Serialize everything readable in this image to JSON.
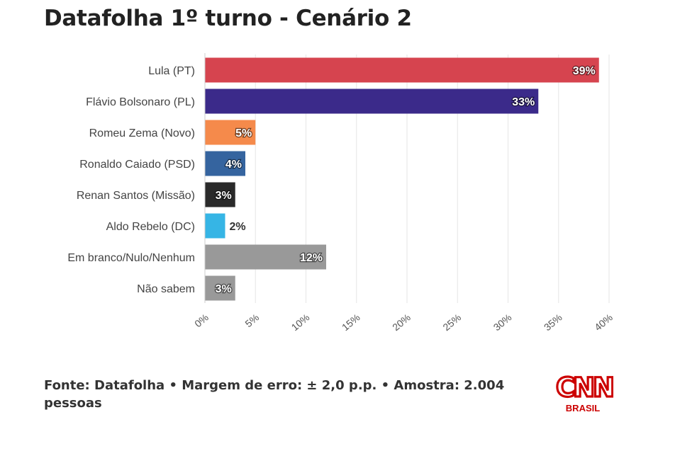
{
  "title": "Datafolha 1º turno - Cenário 2",
  "chart_data": {
    "type": "bar",
    "orientation": "horizontal",
    "title": "Datafolha 1º turno - Cenário 2",
    "categories": [
      "Lula (PT)",
      "Flávio Bolsonaro (PL)",
      "Romeu Zema (Novo)",
      "Ronaldo Caiado (PSD)",
      "Renan Santos (Missão)",
      "Aldo Rebelo (DC)",
      "Em branco/Nulo/Nenhum",
      "Não sabem"
    ],
    "values": [
      39,
      33,
      5,
      4,
      3,
      2,
      12,
      3
    ],
    "value_labels": [
      "39%",
      "33%",
      "5%",
      "4%",
      "3%",
      "2%",
      "12%",
      "3%"
    ],
    "colors": [
      "#d6444f",
      "#3b2a8a",
      "#f58a4b",
      "#35649f",
      "#2a2a2a",
      "#36b5e5",
      "#999999",
      "#999999"
    ],
    "xlim": [
      0,
      40
    ],
    "xticks": [
      "0%",
      "5%",
      "10%",
      "15%",
      "20%",
      "25%",
      "30%",
      "35%",
      "40%"
    ],
    "xtick_values": [
      0,
      5,
      10,
      15,
      20,
      25,
      30,
      35,
      40
    ],
    "xlabel": "",
    "ylabel": "",
    "grid": true
  },
  "footer": {
    "source": "Fonte: Datafolha • Margem de erro: ± 2,0 p.p. • Amostra: 2.004 pessoas"
  },
  "logo": {
    "brand": "CNN",
    "sub": "BRASIL",
    "color": "#cc0000"
  }
}
